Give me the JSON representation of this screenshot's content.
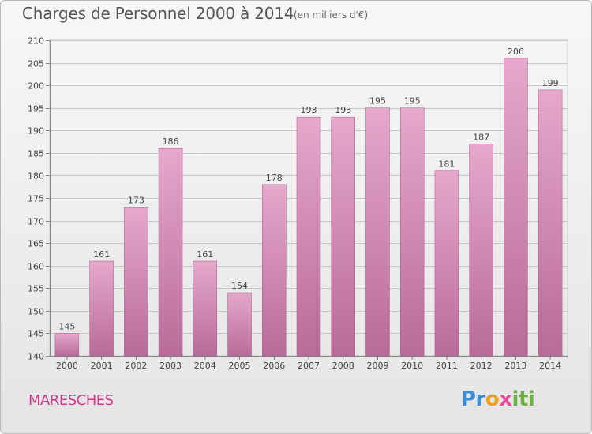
{
  "header": {
    "title": "Charges de Personnel 2000 à 2014",
    "subtitle": "(en milliers d'€)"
  },
  "footer": {
    "commune": "MARESCHES",
    "logo_text": "Proxiti"
  },
  "colors": {
    "bar_top": "#e6a8cc",
    "bar_bottom": "#b86b98",
    "commune_text": "#d4378b",
    "background": "#eeeeee"
  },
  "chart_data": {
    "type": "bar",
    "categories": [
      "2000",
      "2001",
      "2002",
      "2003",
      "2004",
      "2005",
      "2006",
      "2007",
      "2008",
      "2009",
      "2010",
      "2011",
      "2012",
      "2013",
      "2014"
    ],
    "values": [
      145,
      161,
      173,
      186,
      161,
      154,
      178,
      193,
      193,
      195,
      195,
      181,
      187,
      206,
      199
    ],
    "ylim": [
      140,
      210
    ],
    "yticks": [
      140,
      145,
      150,
      155,
      160,
      165,
      170,
      175,
      180,
      185,
      190,
      195,
      200,
      205,
      210
    ],
    "grid": true,
    "data_labels": true
  }
}
